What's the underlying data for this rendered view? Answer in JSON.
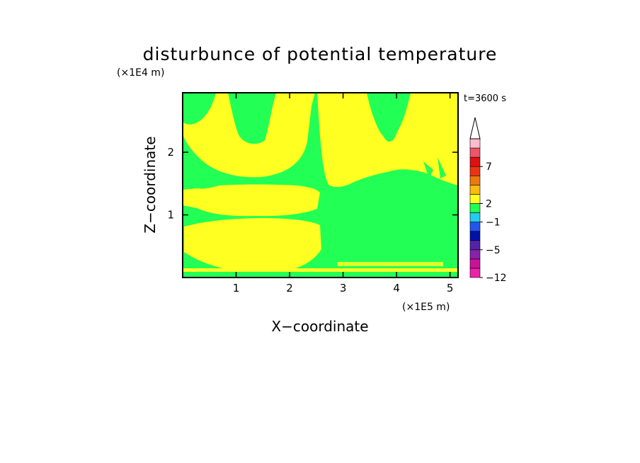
{
  "chart_data": {
    "type": "heatmap",
    "title": "disturbunce of potential temperature",
    "xlabel": "X−coordinate",
    "ylabel": "Z−coordinate",
    "x_unit": "(×1E5 m)",
    "z_unit": "(×1E4 m)",
    "time_label": "t=3600 s",
    "xlim": [
      0,
      5.15
    ],
    "zlim": [
      0,
      2.95
    ],
    "x_ticks": [
      "1",
      "2",
      "3",
      "4",
      "5"
    ],
    "z_ticks": [
      "1",
      "2"
    ],
    "field_levels": [
      {
        "range": "0 to 2",
        "color": "#ffff22"
      },
      {
        "range": "-1 to 0",
        "color": "#22ff55"
      }
    ],
    "colorbar": {
      "colors": [
        "#ee22aa",
        "#cc1199",
        "#8822aa",
        "#5522aa",
        "#0011aa",
        "#2255ee",
        "#22ccee",
        "#22ff55",
        "#ffff22",
        "#ffbb11",
        "#ee7711",
        "#ee3311",
        "#dd1111",
        "#ee5566",
        "#ffbbcc"
      ],
      "tick_labels": [
        "−12",
        "−5",
        "−1",
        "2",
        "7"
      ],
      "extend_top": true
    }
  }
}
